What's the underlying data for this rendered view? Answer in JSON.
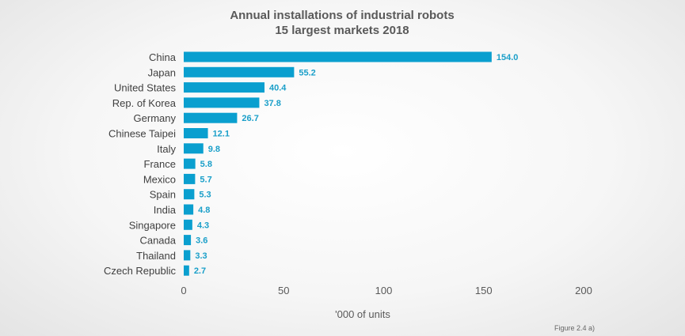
{
  "chart_data": {
    "type": "bar",
    "orientation": "horizontal",
    "title": "Annual installations of industrial robots",
    "subtitle": "15 largest markets 2018",
    "categories": [
      "China",
      "Japan",
      "United States",
      "Rep. of Korea",
      "Germany",
      "Chinese Taipei",
      "Italy",
      "France",
      "Mexico",
      "Spain",
      "India",
      "Singapore",
      "Canada",
      "Thailand",
      "Czech Republic"
    ],
    "values": [
      154.0,
      55.2,
      40.4,
      37.8,
      26.7,
      12.1,
      9.8,
      5.8,
      5.7,
      5.3,
      4.8,
      4.3,
      3.6,
      3.3,
      2.7
    ],
    "value_labels": [
      "154.0",
      "55.2",
      "40.4",
      "37.8",
      "26.7",
      "12.1",
      "9.8",
      "5.8",
      "5.7",
      "5.3",
      "4.8",
      "4.3",
      "3.6",
      "3.3",
      "2.7"
    ],
    "xlabel": "'000 of units",
    "xlim": [
      0,
      200
    ],
    "xticks": [
      "0",
      "50",
      "100",
      "150",
      "200"
    ],
    "grid": false,
    "bar_color": "#0a9fcf",
    "label_color": "#1a9fc9",
    "china_label_color": "#ffffff"
  },
  "figure_label": "Figure 2.4 a)"
}
